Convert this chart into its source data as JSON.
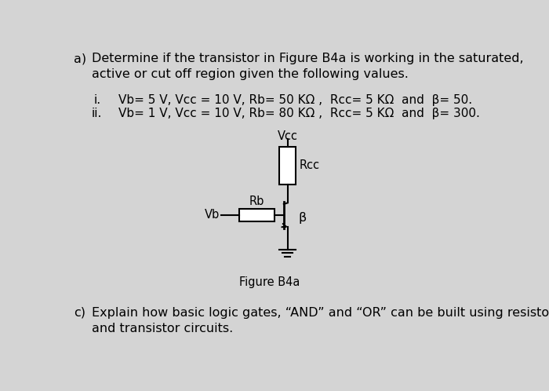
{
  "bg_color": "#d4d4d4",
  "title_a": "a)",
  "title_text": "Determine if the transistor in Figure B4a is working in the saturated,\nactive or cut off region given the following values.",
  "item_i": "i.",
  "item_ii": "ii.",
  "line_i": "Vb= 5 V, Vcc = 10 V, Rb= 50 KΩ ,  Rcc= 5 KΩ  and  β= 50.",
  "line_ii": "Vb= 1 V, Vcc = 10 V, Rb= 80 KΩ ,  Rcc= 5 KΩ  and  β= 300.",
  "label_vcc": "Vcc",
  "label_rcc": "Rcc",
  "label_rb": "Rb",
  "label_vb": "Vb",
  "label_beta": "β",
  "figure_label": "Figure B4a",
  "label_c": "c)",
  "line_c": "Explain how basic logic gates, “AND” and “OR” can be built using resistor\nand transistor circuits.",
  "font_size_main": 11.5,
  "font_size_small": 11,
  "font_size_circuit": 10.5,
  "text_color": "#000000"
}
